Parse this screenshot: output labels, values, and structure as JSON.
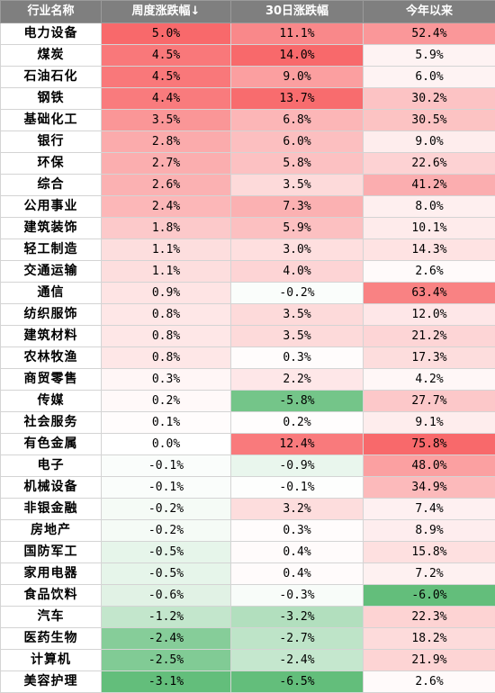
{
  "chart_data": {
    "type": "table",
    "columns": [
      "行业名称",
      "周度涨跌幅↓",
      "30日涨跌幅",
      "今年以来"
    ],
    "rows": [
      {
        "name": "电力设备",
        "week": 5.0,
        "d30": 11.1,
        "ytd": 52.4
      },
      {
        "name": "煤炭",
        "week": 4.5,
        "d30": 14.0,
        "ytd": 5.9
      },
      {
        "name": "石油石化",
        "week": 4.5,
        "d30": 9.0,
        "ytd": 6.0
      },
      {
        "name": "钢铁",
        "week": 4.4,
        "d30": 13.7,
        "ytd": 30.2
      },
      {
        "name": "基础化工",
        "week": 3.5,
        "d30": 6.8,
        "ytd": 30.5
      },
      {
        "name": "银行",
        "week": 2.8,
        "d30": 6.0,
        "ytd": 9.0
      },
      {
        "name": "环保",
        "week": 2.7,
        "d30": 5.8,
        "ytd": 22.6
      },
      {
        "name": "综合",
        "week": 2.6,
        "d30": 3.5,
        "ytd": 41.2
      },
      {
        "name": "公用事业",
        "week": 2.4,
        "d30": 7.3,
        "ytd": 8.0
      },
      {
        "name": "建筑装饰",
        "week": 1.8,
        "d30": 5.9,
        "ytd": 10.1
      },
      {
        "name": "轻工制造",
        "week": 1.1,
        "d30": 3.0,
        "ytd": 14.3
      },
      {
        "name": "交通运输",
        "week": 1.1,
        "d30": 4.0,
        "ytd": 2.6
      },
      {
        "name": "通信",
        "week": 0.9,
        "d30": -0.2,
        "ytd": 63.4
      },
      {
        "name": "纺织服饰",
        "week": 0.8,
        "d30": 3.5,
        "ytd": 12.0
      },
      {
        "name": "建筑材料",
        "week": 0.8,
        "d30": 3.5,
        "ytd": 21.2
      },
      {
        "name": "农林牧渔",
        "week": 0.8,
        "d30": 0.3,
        "ytd": 17.3
      },
      {
        "name": "商贸零售",
        "week": 0.3,
        "d30": 2.2,
        "ytd": 4.2
      },
      {
        "name": "传媒",
        "week": 0.2,
        "d30": -5.8,
        "ytd": 27.7
      },
      {
        "name": "社会服务",
        "week": 0.1,
        "d30": 0.2,
        "ytd": 9.1
      },
      {
        "name": "有色金属",
        "week": 0.0,
        "d30": 12.4,
        "ytd": 75.8
      },
      {
        "name": "电子",
        "week": -0.1,
        "d30": -0.9,
        "ytd": 48.0
      },
      {
        "name": "机械设备",
        "week": -0.1,
        "d30": -0.1,
        "ytd": 34.9
      },
      {
        "name": "非银金融",
        "week": -0.2,
        "d30": 3.2,
        "ytd": 7.4
      },
      {
        "name": "房地产",
        "week": -0.2,
        "d30": 0.3,
        "ytd": 8.9
      },
      {
        "name": "国防军工",
        "week": -0.5,
        "d30": 0.4,
        "ytd": 15.8
      },
      {
        "name": "家用电器",
        "week": -0.5,
        "d30": 0.4,
        "ytd": 7.2
      },
      {
        "name": "食品饮料",
        "week": -0.6,
        "d30": -0.3,
        "ytd": -6.0
      },
      {
        "name": "汽车",
        "week": -1.2,
        "d30": -3.2,
        "ytd": 22.3
      },
      {
        "name": "医药生物",
        "week": -2.4,
        "d30": -2.7,
        "ytd": 18.2
      },
      {
        "name": "计算机",
        "week": -2.5,
        "d30": -2.4,
        "ytd": 21.9
      },
      {
        "name": "美容护理",
        "week": -3.1,
        "d30": -6.5,
        "ytd": 2.6
      }
    ],
    "value_suffix": "%",
    "colors": {
      "header_bg": "#7f7f7f",
      "positive": "#f8696b",
      "negative": "#63be7b",
      "neutral": "#ffffff"
    }
  }
}
